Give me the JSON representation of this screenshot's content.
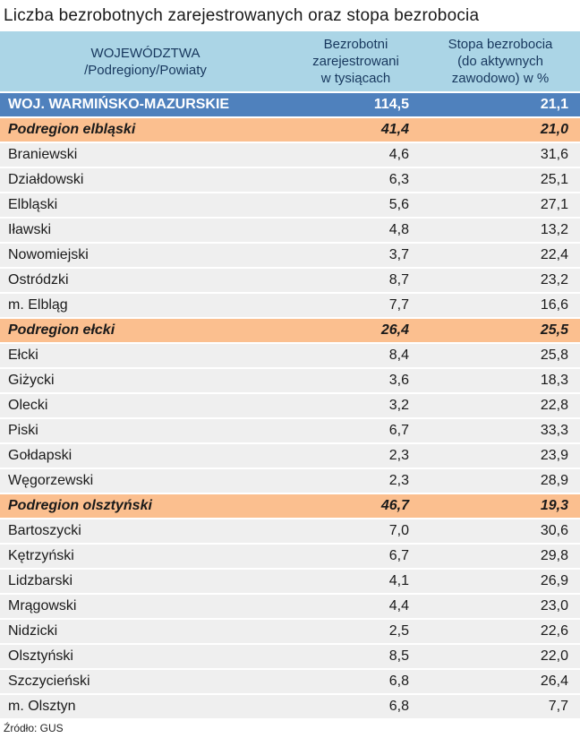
{
  "title": "Liczba bezrobotnych zarejestrowanych oraz stopa bezrobocia",
  "source": "Źródło: GUS",
  "colors": {
    "header_bg": "#abd5e6",
    "header_text": "#17375d",
    "voivodeship_bg": "#4f81bd",
    "voivodeship_text": "#ffffff",
    "subregion_bg": "#fbbf8f",
    "county_bg": "#efefef",
    "row_separator": "#ffffff"
  },
  "table": {
    "columns": [
      {
        "id": "name",
        "label": "WOJEWÓDZTWA\n/Podregiony/Powiaty"
      },
      {
        "id": "unemployed",
        "label": "Bezrobotni\nzarejestrowani\nw tysiącach"
      },
      {
        "id": "rate",
        "label": "Stopa bezrobocia\n(do aktywnych\nzawodowo) w %"
      }
    ],
    "rows": [
      {
        "type": "voivodeship",
        "name": "WOJ. WARMIŃSKO-MAZURSKIE",
        "unemployed": "114,5",
        "rate": "21,1"
      },
      {
        "type": "subregion",
        "name": "Podregion elbląski",
        "unemployed": "41,4",
        "rate": "21,0"
      },
      {
        "type": "county",
        "name": "Braniewski",
        "unemployed": "4,6",
        "rate": "31,6"
      },
      {
        "type": "county",
        "name": "Działdowski",
        "unemployed": "6,3",
        "rate": "25,1"
      },
      {
        "type": "county",
        "name": "Elbląski",
        "unemployed": "5,6",
        "rate": "27,1"
      },
      {
        "type": "county",
        "name": "Iławski",
        "unemployed": "4,8",
        "rate": "13,2"
      },
      {
        "type": "county",
        "name": "Nowomiejski",
        "unemployed": "3,7",
        "rate": "22,4"
      },
      {
        "type": "county",
        "name": "Ostródzki",
        "unemployed": "8,7",
        "rate": "23,2"
      },
      {
        "type": "county",
        "name": "m. Elbląg",
        "unemployed": "7,7",
        "rate": "16,6"
      },
      {
        "type": "subregion",
        "name": "Podregion ełcki",
        "unemployed": "26,4",
        "rate": "25,5"
      },
      {
        "type": "county",
        "name": "Ełcki",
        "unemployed": "8,4",
        "rate": "25,8"
      },
      {
        "type": "county",
        "name": "Giżycki",
        "unemployed": "3,6",
        "rate": "18,3"
      },
      {
        "type": "county",
        "name": "Olecki",
        "unemployed": "3,2",
        "rate": "22,8"
      },
      {
        "type": "county",
        "name": "Piski",
        "unemployed": "6,7",
        "rate": "33,3"
      },
      {
        "type": "county",
        "name": "Gołdapski",
        "unemployed": "2,3",
        "rate": "23,9"
      },
      {
        "type": "county",
        "name": "Węgorzewski",
        "unemployed": "2,3",
        "rate": "28,9"
      },
      {
        "type": "subregion",
        "name": "Podregion olsztyński",
        "unemployed": "46,7",
        "rate": "19,3"
      },
      {
        "type": "county",
        "name": "Bartoszycki",
        "unemployed": "7,0",
        "rate": "30,6"
      },
      {
        "type": "county",
        "name": "Kętrzyński",
        "unemployed": "6,7",
        "rate": "29,8"
      },
      {
        "type": "county",
        "name": "Lidzbarski",
        "unemployed": "4,1",
        "rate": "26,9"
      },
      {
        "type": "county",
        "name": "Mrągowski",
        "unemployed": "4,4",
        "rate": "23,0"
      },
      {
        "type": "county",
        "name": "Nidzicki",
        "unemployed": "2,5",
        "rate": "22,6"
      },
      {
        "type": "county",
        "name": "Olsztyński",
        "unemployed": "8,5",
        "rate": "22,0"
      },
      {
        "type": "county",
        "name": "Szczycieński",
        "unemployed": "6,8",
        "rate": "26,4"
      },
      {
        "type": "county",
        "name": "m. Olsztyn",
        "unemployed": "6,8",
        "rate": "7,7"
      }
    ]
  },
  "chart_data": {
    "type": "table",
    "title": "Liczba bezrobotnych zarejestrowanych oraz stopa bezrobocia",
    "columns": [
      "WOJEWÓDZTWA /Podregiony/Powiaty",
      "Bezrobotni zarejestrowani w tysiącach",
      "Stopa bezrobocia (do aktywnych zawodowo) w %"
    ],
    "rows": [
      [
        "WOJ. WARMIŃSKO-MAZURSKIE",
        114.5,
        21.1
      ],
      [
        "Podregion elbląski",
        41.4,
        21.0
      ],
      [
        "Braniewski",
        4.6,
        31.6
      ],
      [
        "Działdowski",
        6.3,
        25.1
      ],
      [
        "Elbląski",
        5.6,
        27.1
      ],
      [
        "Iławski",
        4.8,
        13.2
      ],
      [
        "Nowomiejski",
        3.7,
        22.4
      ],
      [
        "Ostródzki",
        8.7,
        23.2
      ],
      [
        "m. Elbląg",
        7.7,
        16.6
      ],
      [
        "Podregion ełcki",
        26.4,
        25.5
      ],
      [
        "Ełcki",
        8.4,
        25.8
      ],
      [
        "Giżycki",
        3.6,
        18.3
      ],
      [
        "Olecki",
        3.2,
        22.8
      ],
      [
        "Piski",
        6.7,
        33.3
      ],
      [
        "Gołdapski",
        2.3,
        23.9
      ],
      [
        "Węgorzewski",
        2.3,
        28.9
      ],
      [
        "Podregion olsztyński",
        46.7,
        19.3
      ],
      [
        "Bartoszycki",
        7.0,
        30.6
      ],
      [
        "Kętrzyński",
        6.7,
        29.8
      ],
      [
        "Lidzbarski",
        4.1,
        26.9
      ],
      [
        "Mrągowski",
        4.4,
        23.0
      ],
      [
        "Nidzicki",
        2.5,
        22.6
      ],
      [
        "Olsztyński",
        8.5,
        22.0
      ],
      [
        "Szczycieński",
        6.8,
        26.4
      ],
      [
        "m. Olsztyn",
        6.8,
        7.7
      ]
    ],
    "source": "GUS"
  }
}
